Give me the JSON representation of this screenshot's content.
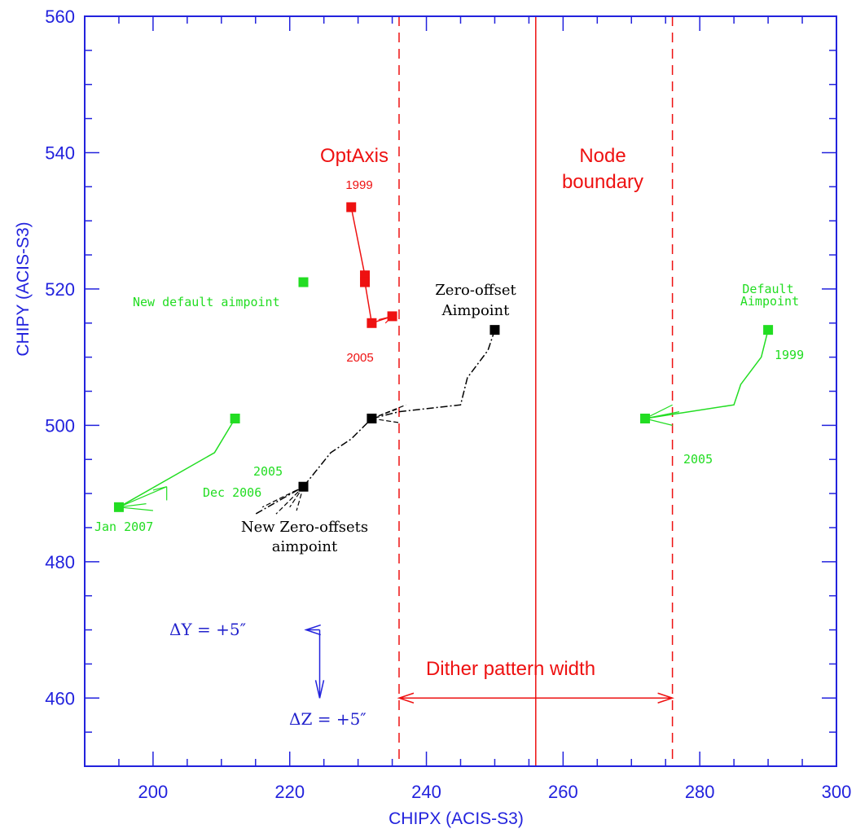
{
  "chart_data": {
    "type": "scatter",
    "title": "",
    "xlabel": "CHIPX (ACIS-S3)",
    "ylabel": "CHIPY (ACIS-S3)",
    "xlim": [
      190,
      300
    ],
    "ylim": [
      450,
      560
    ],
    "xticks": [
      200,
      220,
      240,
      260,
      280,
      300
    ],
    "yticks": [
      460,
      480,
      500,
      520,
      540,
      560
    ],
    "series": [
      {
        "name": "OptAxis",
        "color": "#ee1111",
        "marker": "square",
        "points": [
          [
            229,
            532
          ],
          [
            231,
            522
          ],
          [
            231,
            521
          ],
          [
            232,
            515
          ],
          [
            235,
            516
          ]
        ],
        "path": [
          [
            229,
            532
          ],
          [
            231,
            522
          ],
          [
            231,
            521
          ],
          [
            232,
            515
          ],
          [
            235,
            516
          ]
        ]
      },
      {
        "name": "Zero-offset Aimpoint",
        "color": "#000000",
        "marker": "square",
        "points": [
          [
            250,
            514
          ],
          [
            232,
            501
          ],
          [
            222,
            491
          ]
        ],
        "path": [
          [
            250,
            514
          ],
          [
            249,
            511
          ],
          [
            246,
            507
          ],
          [
            245,
            503
          ],
          [
            236,
            502
          ],
          [
            232,
            501
          ],
          [
            229,
            498
          ],
          [
            226,
            496
          ],
          [
            222,
            491
          ],
          [
            215,
            487
          ]
        ]
      },
      {
        "name": "Default Aimpoint",
        "color": "#22dd22",
        "marker": "square",
        "points": [
          [
            290,
            514
          ],
          [
            272,
            501
          ],
          [
            222,
            521
          ],
          [
            212,
            501
          ],
          [
            195,
            488
          ]
        ],
        "path_default": [
          [
            290,
            514
          ],
          [
            289,
            510
          ],
          [
            286,
            506
          ],
          [
            285,
            503
          ],
          [
            272,
            501
          ]
        ],
        "path_new": [
          [
            212,
            501
          ],
          [
            209,
            496
          ],
          [
            195,
            488
          ]
        ]
      }
    ],
    "vlines": [
      {
        "x": 236,
        "style": "dashed",
        "color": "#ee1111"
      },
      {
        "x": 256,
        "style": "solid",
        "color": "#ee1111"
      },
      {
        "x": 276,
        "style": "dashed",
        "color": "#ee1111"
      }
    ],
    "dither_arrow": {
      "x1": 236,
      "x2": 276,
      "y": 460
    },
    "offset_arrows": {
      "origin": [
        222,
        470
      ],
      "dy_end": [
        220,
        470
      ],
      "dz_end": [
        222,
        460
      ]
    },
    "annotations": {
      "optaxis": "OptAxis",
      "node_line1": "Node",
      "node_line2": "boundary",
      "red_1999": "1999",
      "red_2005": "2005",
      "new_default": "New default aimpoint",
      "zero_offset_line1": "Zero-offset",
      "zero_offset_line2": "Aimpoint",
      "default_line1": "Default",
      "default_line2": "Aimpoint",
      "green_1999": "1999",
      "green_2005_right": "2005",
      "green_2005_left": "2005",
      "dec_2006": "Dec 2006",
      "jan_2007": "Jan 2007",
      "new_zero_line1": "New Zero-offsets",
      "new_zero_line2": "aimpoint",
      "delta_y": "ΔY  =  +5″",
      "delta_z": "ΔZ  =  +5″",
      "dither": "Dither pattern width"
    }
  }
}
